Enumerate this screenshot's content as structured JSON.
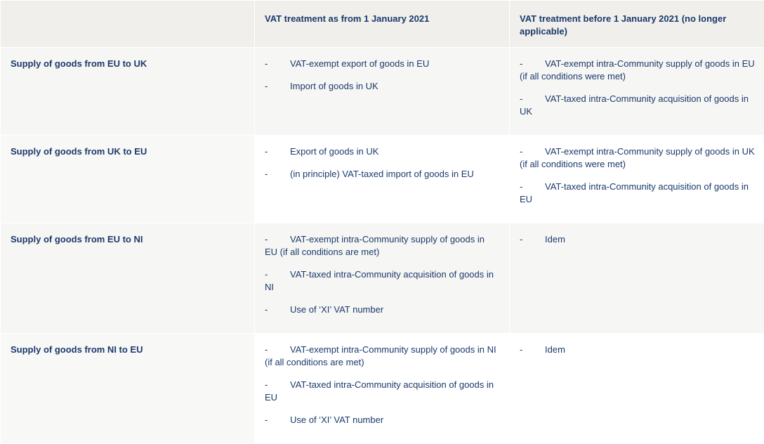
{
  "table": {
    "header": [
      "",
      "VAT treatment as from 1 January 2021",
      "VAT treatment before 1 January 2021 (no longer applicable)"
    ],
    "rows": [
      {
        "label": "Supply of goods from EU to UK",
        "after": [
          "VAT-exempt export of goods in EU",
          "Import of goods in UK"
        ],
        "before": [
          "VAT-exempt intra-Community supply of goods in EU (if all conditions were met)",
          "VAT-taxed intra-Community acquisition of goods in UK"
        ]
      },
      {
        "label": "Supply of goods from UK to EU",
        "after": [
          "Export of goods in UK",
          "(in principle) VAT-taxed import of goods in EU"
        ],
        "before": [
          "VAT-exempt intra-Community supply of goods in UK (if all conditions were met)",
          "VAT-taxed intra-Community acquisition of goods in EU"
        ]
      },
      {
        "label": "Supply of goods from EU to NI",
        "after": [
          "VAT-exempt intra-Community supply of goods in EU (if all conditions are met)",
          "VAT-taxed intra-Community acquisition of goods in NI",
          "Use of ‘XI’ VAT number"
        ],
        "before": [
          "Idem"
        ]
      },
      {
        "label": "Supply of goods from NI to EU",
        "after": [
          "VAT-exempt intra-Community supply of goods in NI (if all conditions are met)",
          "VAT-taxed intra-Community acquisition of goods in EU",
          "Use of ‘XI’ VAT number"
        ],
        "before": [
          "Idem"
        ]
      }
    ],
    "bullet": "-"
  }
}
